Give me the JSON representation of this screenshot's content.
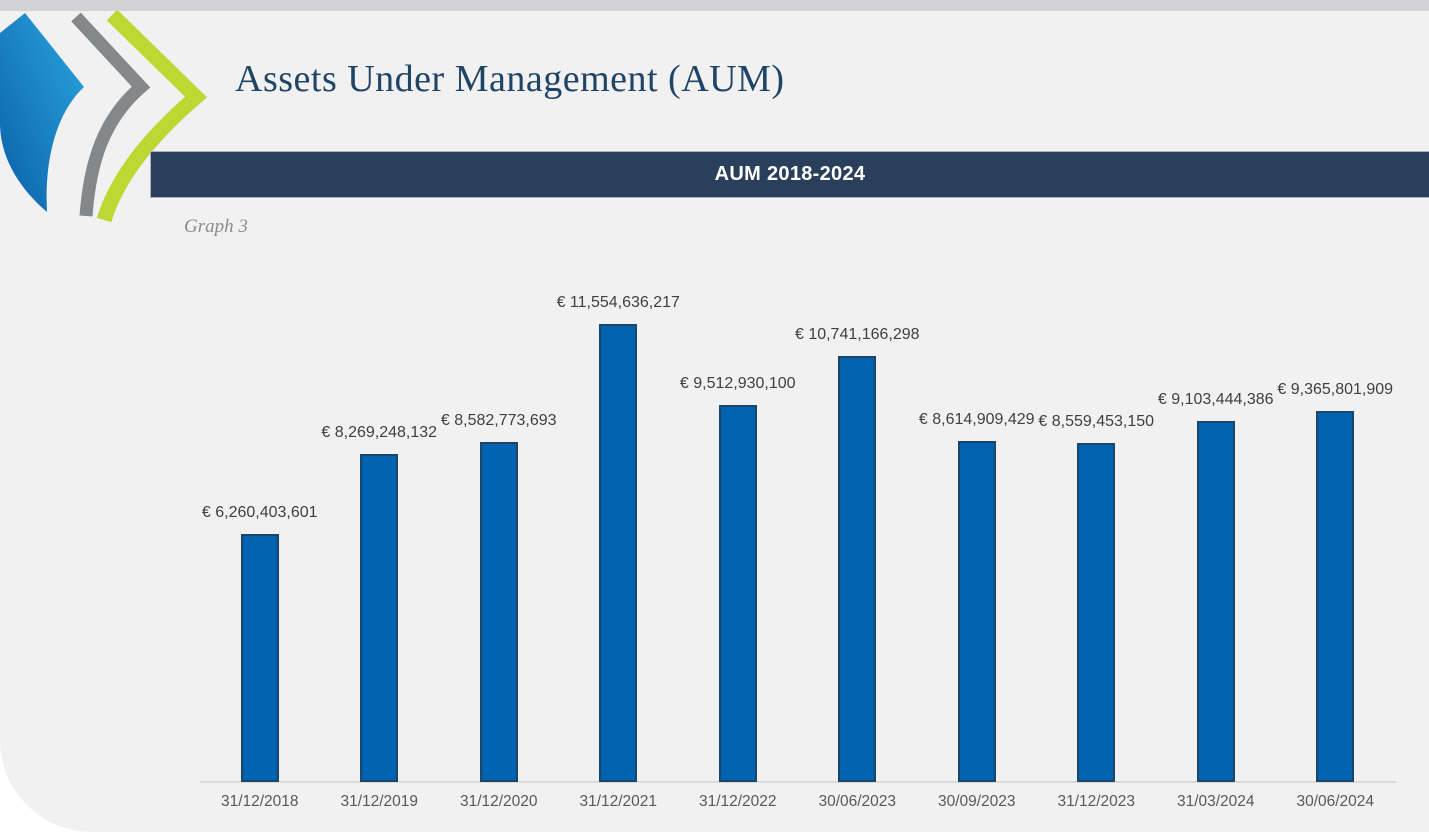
{
  "header": {
    "title": "Assets Under Management (AUM)"
  },
  "banner": {
    "title": "AUM 2018-2024"
  },
  "caption": {
    "text": "Graph 3"
  },
  "logo": {
    "name": "triple-swoosh-logo",
    "colors": {
      "blue_start": "#0B5FA9",
      "blue_end": "#2AA6DE",
      "gray": "#85888B",
      "green": "#BDD733"
    }
  },
  "colors": {
    "page_background": "#F1F1F2",
    "top_strip": "#D2D1D4",
    "banner_background": "#293F5B",
    "banner_border": "#A9B3C4",
    "banner_text": "#FFFFFF",
    "title_text": "#204465",
    "caption_text": "#8C8C8C",
    "value_label_text": "#3F3F3F",
    "axis_label_text": "#595959",
    "axis_line": "#DADADA"
  },
  "chart_data": {
    "type": "bar",
    "title": "AUM 2018-2024",
    "xlabel": "",
    "ylabel": "",
    "currency": "EUR",
    "legend": "none",
    "gridlines": false,
    "ylim": [
      0,
      12000000000
    ],
    "categories": [
      "31/12/2018",
      "31/12/2019",
      "31/12/2020",
      "31/12/2021",
      "31/12/2022",
      "30/06/2023",
      "30/09/2023",
      "31/12/2023",
      "31/03/2024",
      "30/06/2024"
    ],
    "values": [
      6260403601,
      8269248132,
      8582773693,
      11554636217,
      9512930100,
      10741166298,
      8614909429,
      8559453150,
      9103444386,
      9365801909
    ],
    "value_labels": [
      "€ 6,260,403,601",
      "€ 8,269,248,132",
      "€ 8,582,773,693",
      "€ 11,554,636,217",
      "€ 9,512,930,100",
      "€ 10,741,166,298",
      "€ 8,614,909,429",
      "€ 8,559,453,150",
      "€ 9,103,444,386",
      "€ 9,365,801,909"
    ],
    "bar_color": "#0063B1",
    "bar_border_color": "#1B4667"
  }
}
